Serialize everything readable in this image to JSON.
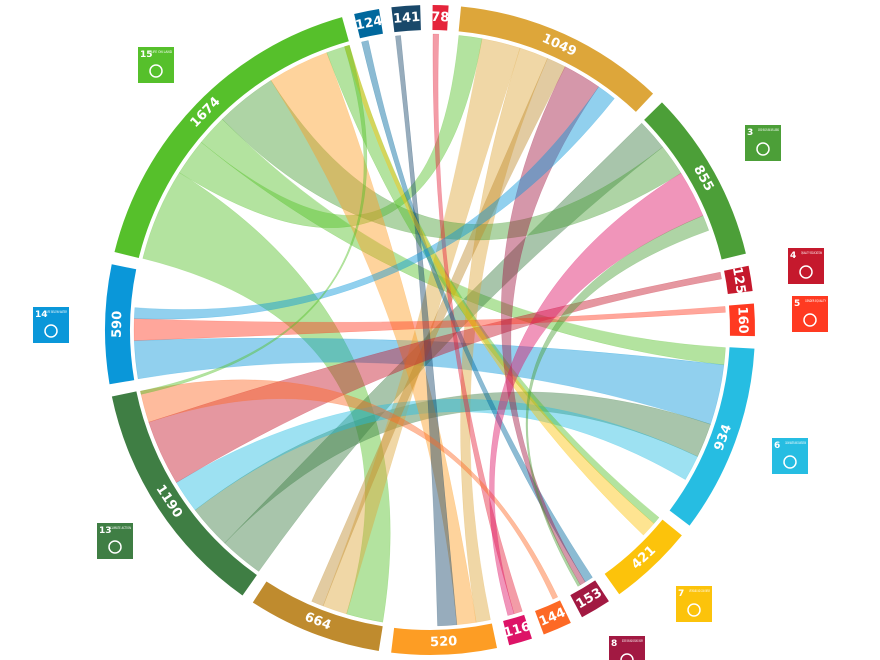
{
  "chart_data": {
    "type": "chord",
    "values": [
      124,
      141,
      78,
      1049,
      855,
      125,
      160,
      934,
      421,
      153,
      144,
      116,
      520,
      664,
      1190,
      590,
      1674
    ],
    "colors": [
      "#00689d",
      "#19486a",
      "#e5243b",
      "#dda63a",
      "#4c9f38",
      "#c5192d",
      "#ff3a21",
      "#26bde2",
      "#fcc30b",
      "#a21942",
      "#fd6925",
      "#dd1367",
      "#fd9d24",
      "#bf8b2e",
      "#3f7e44",
      "#0a97d9",
      "#56c02b"
    ]
  },
  "icons": [
    {
      "number": "15",
      "label": "LIFE ON LAND",
      "color": "#56c02b"
    },
    {
      "number": "3",
      "label": "GOOD HEALTH AND WELL-BEING",
      "color": "#4c9f38"
    },
    {
      "number": "4",
      "label": "QUALITY EDUCATION",
      "color": "#c5192d"
    },
    {
      "number": "5",
      "label": "GENDER EQUALITY",
      "color": "#ff3a21"
    },
    {
      "number": "14",
      "label": "LIFE BELOW WATER",
      "color": "#0a97d9"
    },
    {
      "number": "6",
      "label": "CLEAN WATER AND SANITATION",
      "color": "#26bde2"
    },
    {
      "number": "13",
      "label": "CLIMATE ACTION",
      "color": "#3f7e44"
    },
    {
      "number": "7",
      "label": "AFFORDABLE AND CLEAN ENERGY",
      "color": "#fcc30b"
    },
    {
      "number": "8",
      "label": "DECENT WORK AND ECONOMIC GROWTH",
      "color": "#a21942"
    }
  ]
}
